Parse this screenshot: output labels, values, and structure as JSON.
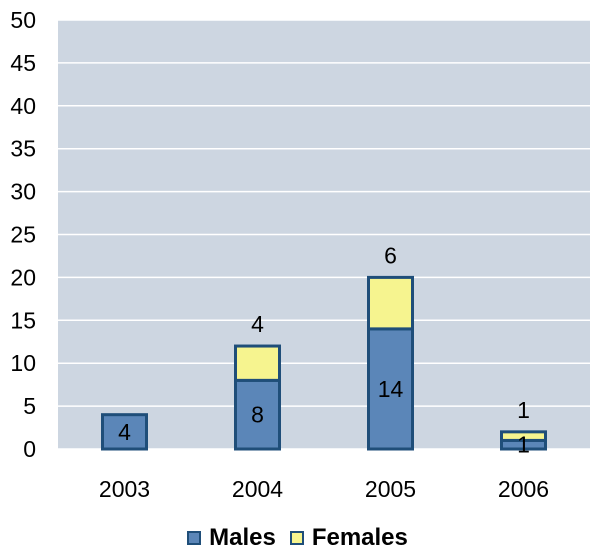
{
  "chart_data": {
    "type": "bar",
    "stacked": true,
    "categories": [
      "2003",
      "2004",
      "2005",
      "2006"
    ],
    "series": [
      {
        "name": "Males",
        "values": [
          4,
          8,
          14,
          1
        ],
        "labels": [
          "4",
          "8",
          "14",
          "1"
        ],
        "color": "#5b86b8"
      },
      {
        "name": "Females",
        "values": [
          0,
          4,
          6,
          1
        ],
        "labels": [
          "",
          "4",
          "6",
          "1"
        ],
        "color": "#f6f48f"
      }
    ],
    "ylim": [
      0,
      50
    ],
    "yticks": [
      "0",
      "5",
      "10",
      "15",
      "20",
      "25",
      "30",
      "35",
      "40",
      "45",
      "50"
    ],
    "title": "",
    "xlabel": "",
    "ylabel": "",
    "grid": true,
    "legend": "bottom-center",
    "colors": {
      "plot_bg": "#cdd6e1",
      "grid": "#ffffff",
      "bar_border": "#1f4e79"
    }
  }
}
